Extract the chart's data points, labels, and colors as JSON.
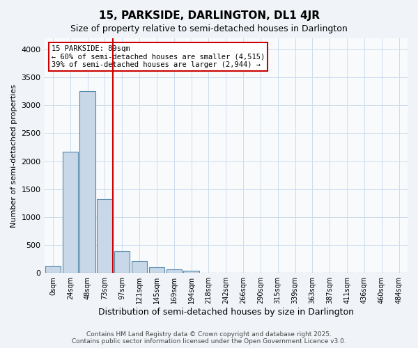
{
  "title": "15, PARKSIDE, DARLINGTON, DL1 4JR",
  "subtitle": "Size of property relative to semi-detached houses in Darlington",
  "xlabel": "Distribution of semi-detached houses by size in Darlington",
  "ylabel": "Number of semi-detached properties",
  "categories": [
    "0sqm",
    "24sqm",
    "48sqm",
    "73sqm",
    "97sqm",
    "121sqm",
    "145sqm",
    "169sqm",
    "194sqm",
    "218sqm",
    "242sqm",
    "266sqm",
    "290sqm",
    "315sqm",
    "339sqm",
    "363sqm",
    "387sqm",
    "411sqm",
    "436sqm",
    "460sqm",
    "484sqm"
  ],
  "values": [
    130,
    2170,
    3250,
    1320,
    390,
    210,
    100,
    60,
    40,
    0,
    0,
    0,
    0,
    0,
    0,
    0,
    0,
    0,
    0,
    0,
    0
  ],
  "bar_color": "#c8d8e8",
  "bar_edge_color": "#5588aa",
  "vline_x": 3,
  "vline_color": "#cc0000",
  "annotation_text": "15 PARKSIDE: 89sqm\n← 60% of semi-detached houses are smaller (4,515)\n39% of semi-detached houses are larger (2,944) →",
  "annotation_box_color": "#ffffff",
  "annotation_box_edge_color": "#cc0000",
  "ylim": [
    0,
    4200
  ],
  "yticks": [
    0,
    500,
    1000,
    1500,
    2000,
    2500,
    3000,
    3500,
    4000
  ],
  "footer": "Contains HM Land Registry data © Crown copyright and database right 2025.\nContains public sector information licensed under the Open Government Licence v3.0.",
  "bg_color": "#f0f4f8",
  "plot_bg_color": "#f8fafc",
  "grid_color": "#ccddee"
}
